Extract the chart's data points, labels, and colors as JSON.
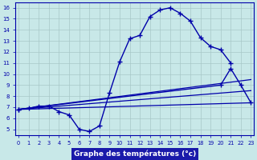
{
  "background_color": "#c8e8e8",
  "grid_color": "#a8c8c8",
  "line_color": "#0000aa",
  "xlabel": "Graphe des températures (°c)",
  "xlabel_bg": "#1a1aaa",
  "xlabel_fg": "#ffffff",
  "main_x": [
    0,
    1,
    2,
    3,
    4,
    5,
    6,
    7,
    8,
    9,
    10,
    11,
    12,
    13,
    14,
    15,
    16,
    17,
    18,
    19,
    20,
    21
  ],
  "main_y": [
    6.8,
    6.9,
    7.1,
    7.1,
    6.6,
    6.3,
    5.0,
    4.8,
    5.3,
    8.3,
    11.1,
    13.2,
    13.5,
    15.2,
    15.8,
    16.0,
    15.5,
    14.8,
    13.3,
    12.5,
    12.2,
    11.0
  ],
  "tri_x": [
    0,
    20,
    21,
    22,
    23
  ],
  "tri_y": [
    6.8,
    9.0,
    10.5,
    9.0,
    7.4
  ],
  "line1_x": [
    0,
    23
  ],
  "line1_y": [
    6.8,
    7.4
  ],
  "line2_x": [
    0,
    23
  ],
  "line2_y": [
    6.8,
    8.5
  ],
  "line3_x": [
    0,
    23
  ],
  "line3_y": [
    6.8,
    9.5
  ],
  "ylim": [
    4.5,
    16.5
  ],
  "xlim": [
    -0.3,
    23.3
  ],
  "ytick_min": 5,
  "ytick_max": 16,
  "xticks": [
    0,
    1,
    2,
    3,
    4,
    5,
    6,
    7,
    8,
    9,
    10,
    11,
    12,
    13,
    14,
    15,
    16,
    17,
    18,
    19,
    20,
    21,
    22,
    23
  ]
}
